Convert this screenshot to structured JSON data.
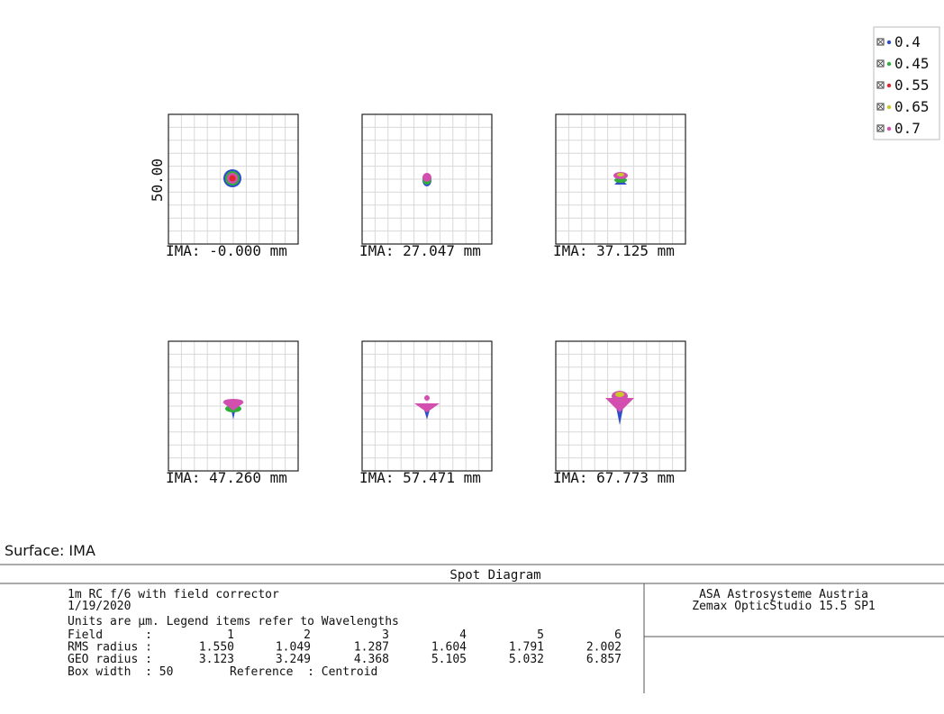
{
  "legend": [
    {
      "label": "0.4",
      "color": "#2f4fc8"
    },
    {
      "label": "0.45",
      "color": "#2fae3a"
    },
    {
      "label": "0.55",
      "color": "#e0262b"
    },
    {
      "label": "0.65",
      "color": "#c9c82a"
    },
    {
      "label": "0.7",
      "color": "#d24fb0"
    }
  ],
  "axis_label": "50.00",
  "plots": [
    {
      "label": "IMA: -0.000 mm"
    },
    {
      "label": "IMA: 27.047 mm"
    },
    {
      "label": "IMA: 37.125 mm"
    },
    {
      "label": "IMA: 47.260 mm"
    },
    {
      "label": "IMA: 57.471 mm"
    },
    {
      "label": "IMA: 67.773 mm"
    }
  ],
  "surface": "Surface: IMA",
  "footer": {
    "title": "Spot Diagram",
    "lines": [
      "1m RC f/6 with field corrector",
      "1/19/2020",
      "Units are µm. Legend items refer to Wavelengths"
    ],
    "table": {
      "rows": [
        [
          "Field      :",
          "1",
          "2",
          "3",
          "4",
          "5",
          "6"
        ],
        [
          "RMS radius :",
          "1.550",
          "1.049",
          "1.287",
          "1.604",
          "1.791",
          "2.002"
        ],
        [
          "GEO radius :",
          "3.123",
          "3.249",
          "4.368",
          "5.105",
          "5.032",
          "6.857"
        ]
      ]
    },
    "box_width": "Box width  : 50",
    "reference": "Reference  : Centroid",
    "company": "ASA Astrosysteme Austria",
    "software": "Zemax OpticStudio 15.5 SP1"
  }
}
